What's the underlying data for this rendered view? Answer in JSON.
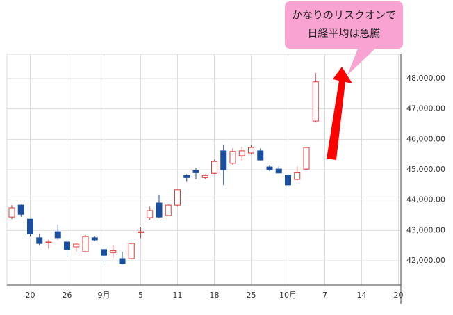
{
  "chart_data": {
    "type": "candlestick",
    "categories": [
      null,
      null,
      "20",
      null,
      null,
      null,
      "26",
      null,
      null,
      null,
      "9月",
      null,
      null,
      null,
      "5",
      null,
      null,
      null,
      "11",
      null,
      null,
      null,
      "18",
      null,
      null,
      null,
      "25",
      null,
      null,
      null,
      "10月",
      null,
      null,
      null,
      "7",
      null,
      null,
      null,
      "14",
      null,
      null,
      null,
      "20"
    ],
    "open": [
      43440,
      43830,
      43370,
      42760,
      42600,
      42960,
      42620,
      42460,
      42300,
      42760,
      42370,
      42270,
      42070,
      42070,
      42930,
      43420,
      43900,
      43490,
      43830,
      44810,
      44970,
      44740,
      44880,
      45620,
      45210,
      45460,
      45550,
      45620,
      45090,
      45020,
      44820,
      44680,
      45020,
      46600,
      null,
      null,
      null,
      null,
      null,
      null,
      null,
      null,
      null
    ],
    "high": [
      43830,
      43850,
      43380,
      42900,
      42700,
      43200,
      42700,
      42600,
      42850,
      42800,
      42450,
      42500,
      42300,
      42580,
      43100,
      43800,
      44180,
      43850,
      44350,
      44850,
      45050,
      44850,
      45330,
      45830,
      45700,
      45750,
      45800,
      45700,
      45150,
      45100,
      44850,
      45100,
      45750,
      48180,
      null,
      null,
      null,
      null,
      null,
      null,
      null,
      null,
      null
    ],
    "low": [
      43370,
      43450,
      42800,
      42500,
      42400,
      42700,
      42150,
      42300,
      42300,
      42650,
      41850,
      42100,
      41880,
      42050,
      42750,
      43350,
      43400,
      43480,
      43800,
      44600,
      44680,
      44680,
      44860,
      44500,
      45150,
      45300,
      45500,
      45300,
      44950,
      44880,
      44380,
      44650,
      45000,
      46550,
      null,
      null,
      null,
      null,
      null,
      null,
      null,
      null,
      null
    ],
    "close": [
      43740,
      43530,
      42890,
      42570,
      42620,
      42760,
      42370,
      42550,
      42800,
      42690,
      42180,
      42330,
      41910,
      42570,
      42960,
      43650,
      43440,
      43830,
      44340,
      44740,
      44900,
      44810,
      45270,
      45000,
      45600,
      45620,
      45730,
      45320,
      45000,
      44890,
      44500,
      44900,
      45730,
      47890,
      null,
      null,
      null,
      null,
      null,
      null,
      null,
      null,
      null
    ],
    "up_color": "#e03c3c",
    "down_color": "#1b4f9e",
    "ylim": [
      41200,
      48800
    ],
    "yticks": [
      {
        "value": 42000,
        "label": "42,000.00"
      },
      {
        "value": 43000,
        "label": "43,000.00"
      },
      {
        "value": 44000,
        "label": "44,000.00"
      },
      {
        "value": 45000,
        "label": "45,000.00"
      },
      {
        "value": 46000,
        "label": "46,000.00"
      },
      {
        "value": 47000,
        "label": "47,000.00"
      },
      {
        "value": 48000,
        "label": "48,000.00"
      }
    ],
    "grid": true,
    "annotation": {
      "lines": [
        "かなりのリスクオンで",
        "日経平均は急騰"
      ]
    }
  }
}
